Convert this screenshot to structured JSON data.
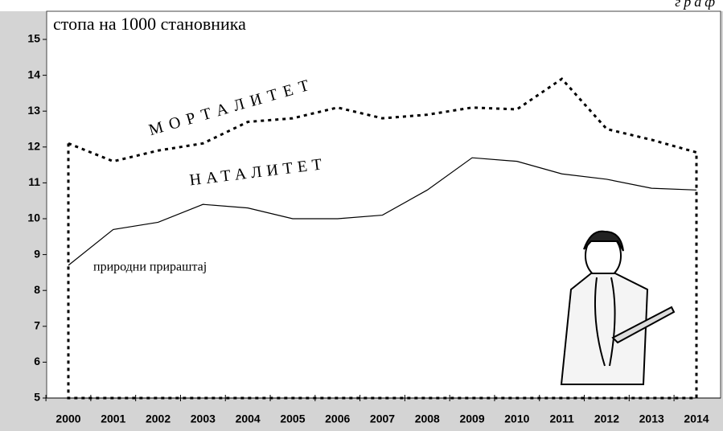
{
  "chart_data": {
    "type": "line",
    "subtitle": "стопа на 1000 становника",
    "corner_note": "граф",
    "categories": [
      "2000",
      "2001",
      "2002",
      "2003",
      "2004",
      "2005",
      "2006",
      "2007",
      "2008",
      "2009",
      "2010",
      "2011",
      "2012",
      "2013",
      "2014"
    ],
    "series": [
      {
        "name": "МОРТАЛИТЕТ",
        "color": "#000000",
        "dash": true,
        "values": [
          12.1,
          11.6,
          11.9,
          12.1,
          12.7,
          12.8,
          13.1,
          12.8,
          12.9,
          13.1,
          13.05,
          13.9,
          12.5,
          12.2,
          11.85
        ]
      },
      {
        "name": "НАТАЛИТЕТ",
        "color": "#000000",
        "dash": false,
        "values": [
          8.7,
          9.7,
          9.9,
          10.4,
          10.3,
          10.0,
          10.0,
          10.1,
          10.8,
          11.7,
          11.6,
          11.25,
          11.1,
          10.85,
          10.8
        ]
      }
    ],
    "annotation": "природни прираштај",
    "ylim": [
      5,
      15
    ],
    "yticks": [
      5,
      6,
      7,
      8,
      9,
      10,
      11,
      12,
      13,
      14,
      15
    ]
  }
}
